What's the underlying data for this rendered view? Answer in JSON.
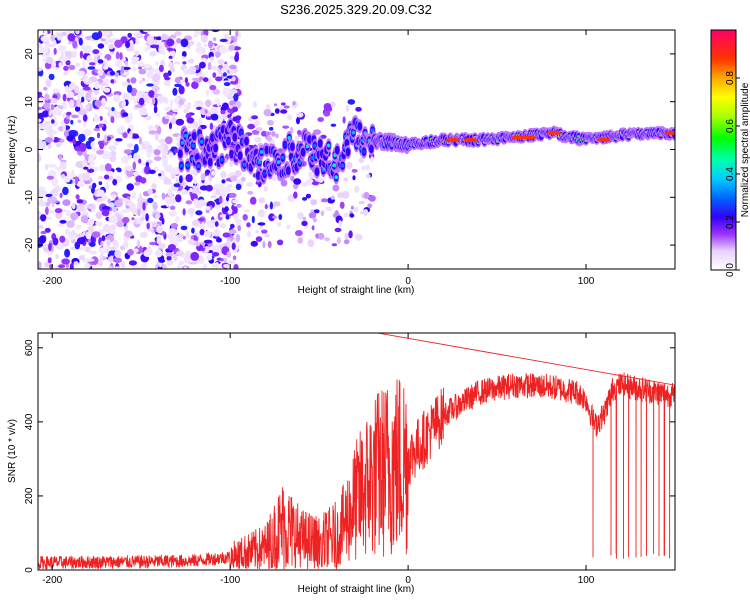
{
  "title": "S236.2025.329.20.09.C32",
  "chart_data": [
    {
      "type": "heatmap",
      "name": "spectrogram",
      "xlabel": "Height of straight line (km)",
      "ylabel": "Frequency (Hz)",
      "xlim": [
        -208,
        150
      ],
      "ylim": [
        -25,
        25
      ],
      "xticks": [
        -200,
        -100,
        0,
        100
      ],
      "yticks": [
        -20,
        -10,
        0,
        10,
        20
      ],
      "colorbar": {
        "label": "Normalized spectral amplitude",
        "range": [
          0,
          1
        ],
        "ticks": [
          "0.0",
          "0.2",
          "0.4",
          "0.6",
          "0.8"
        ],
        "tick_values": [
          0,
          0.2,
          0.4,
          0.6,
          0.8
        ]
      },
      "ridge": {
        "description_points_x": [
          -125,
          -110,
          -100,
          -80,
          -60,
          -40,
          -30,
          -20,
          0,
          20,
          40,
          60,
          80,
          100,
          120,
          150
        ],
        "frequency_hz": [
          0,
          0,
          2,
          -3,
          0,
          -3,
          3,
          2,
          1,
          2,
          2,
          2.5,
          3.5,
          2,
          3,
          3.5
        ],
        "amplitude": [
          0.4,
          0.3,
          0.3,
          0.4,
          0.4,
          0.5,
          0.4,
          0.5,
          0.5,
          0.9,
          0.8,
          0.9,
          0.9,
          0.7,
          0.8,
          0.9
        ]
      }
    },
    {
      "type": "line",
      "name": "snr",
      "xlabel": "Height of straight line (km)",
      "ylabel": "SNR (10 * v/v)",
      "xlim": [
        -208,
        150
      ],
      "ylim": [
        0,
        640
      ],
      "xticks": [
        -200,
        -100,
        0,
        100
      ],
      "yticks": [
        0,
        200,
        400,
        600
      ],
      "color": "#ee2222",
      "envelope_x": [
        -208,
        -150,
        -120,
        -100,
        -80,
        -70,
        -60,
        -50,
        -40,
        -30,
        -20,
        -10,
        0,
        10,
        20,
        40,
        60,
        80,
        95,
        100,
        105,
        110,
        115,
        120,
        150
      ],
      "envelope_y": [
        20,
        22,
        25,
        35,
        60,
        120,
        80,
        70,
        90,
        180,
        250,
        280,
        300,
        360,
        420,
        480,
        500,
        495,
        480,
        460,
        390,
        420,
        490,
        500,
        470
      ],
      "dropouts_x": [
        104,
        114,
        117,
        121,
        124,
        128,
        131,
        134,
        138,
        141,
        144,
        147
      ]
    }
  ]
}
